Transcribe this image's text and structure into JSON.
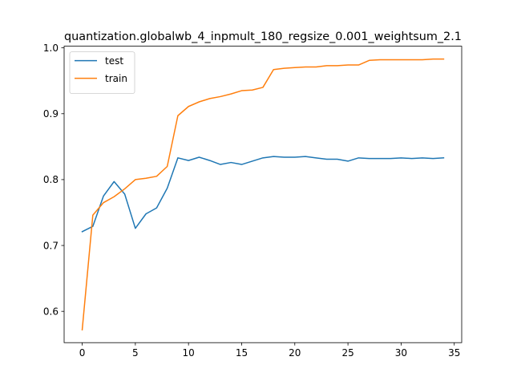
{
  "chart_data": {
    "type": "line",
    "title": "quantization.globalwb_4_inpmult_180_regsize_0.001_weightsum_2.1",
    "xlabel": "",
    "ylabel": "",
    "xlim": [
      -1.7,
      35.7
    ],
    "ylim": [
      0.5525,
      1.0025
    ],
    "x_ticks": [
      0,
      5,
      10,
      15,
      20,
      25,
      30,
      35
    ],
    "y_ticks": [
      0.6,
      0.7,
      0.8,
      0.9,
      1.0
    ],
    "y_tick_labels": [
      "0.6",
      "0.7",
      "0.8",
      "0.9",
      "1.0"
    ],
    "grid": false,
    "legend_position": "upper-left",
    "x": [
      0,
      1,
      2,
      3,
      4,
      5,
      6,
      7,
      8,
      9,
      10,
      11,
      12,
      13,
      14,
      15,
      16,
      17,
      18,
      19,
      20,
      21,
      22,
      23,
      24,
      25,
      26,
      27,
      28,
      29,
      30,
      31,
      32,
      33,
      34
    ],
    "series": [
      {
        "name": "test",
        "color": "#1f77b4",
        "values": [
          0.721,
          0.729,
          0.775,
          0.797,
          0.778,
          0.726,
          0.748,
          0.757,
          0.787,
          0.833,
          0.829,
          0.834,
          0.829,
          0.823,
          0.826,
          0.823,
          0.828,
          0.833,
          0.835,
          0.834,
          0.834,
          0.835,
          0.833,
          0.831,
          0.831,
          0.828,
          0.833,
          0.832,
          0.832,
          0.832,
          0.833,
          0.832,
          0.833,
          0.832,
          0.833
        ]
      },
      {
        "name": "train",
        "color": "#ff7f0e",
        "values": [
          0.572,
          0.746,
          0.765,
          0.774,
          0.786,
          0.8,
          0.802,
          0.805,
          0.82,
          0.897,
          0.911,
          0.918,
          0.923,
          0.926,
          0.93,
          0.935,
          0.936,
          0.94,
          0.967,
          0.969,
          0.97,
          0.971,
          0.971,
          0.973,
          0.973,
          0.974,
          0.974,
          0.981,
          0.982,
          0.982,
          0.982,
          0.982,
          0.982,
          0.983,
          0.983
        ]
      }
    ]
  }
}
